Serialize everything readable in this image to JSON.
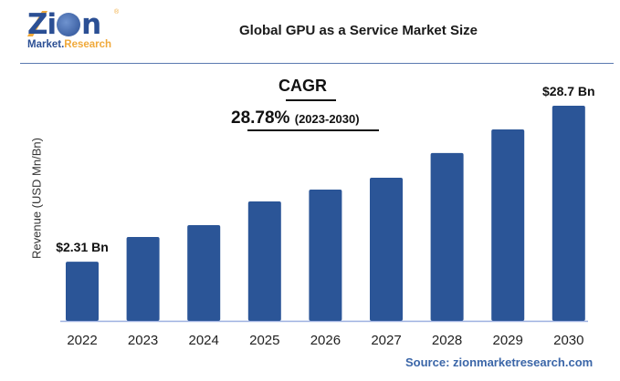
{
  "logo": {
    "main": "Zion",
    "sub_left": "Market.",
    "sub_right": "Research",
    "registered": "®"
  },
  "title": "Global GPU as a Service Market Size",
  "cagr": {
    "label": "CAGR",
    "value": "28.78%",
    "period": "(2023-2030)"
  },
  "source": "Source: zionmarketresearch.com",
  "colors": {
    "bar": "#2b5597",
    "axis": "#9db0e0",
    "accent": "#3b66a8",
    "logo_blue": "#2b4f94",
    "logo_orange": "#f0a93a"
  },
  "chart_data": {
    "type": "bar",
    "title": "Global GPU as a Service Market Size",
    "xlabel": "",
    "ylabel": "Revenue (USD Mn/Bn)",
    "categories": [
      "2022",
      "2023",
      "2024",
      "2025",
      "2026",
      "2027",
      "2028",
      "2029",
      "2030"
    ],
    "values": [
      2.31,
      null,
      null,
      null,
      null,
      null,
      null,
      null,
      28.7
    ],
    "relative_levels": [
      0.275,
      0.39,
      0.445,
      0.555,
      0.61,
      0.665,
      0.78,
      0.89,
      1.0
    ],
    "data_labels": [
      "$2.31 Bn",
      "",
      "",
      "",
      "",
      "",
      "",
      "",
      "$28.7 Bn"
    ],
    "grid": false,
    "legend": "none",
    "annotations": [
      "CAGR",
      "28.78% (2023-2030)"
    ]
  }
}
